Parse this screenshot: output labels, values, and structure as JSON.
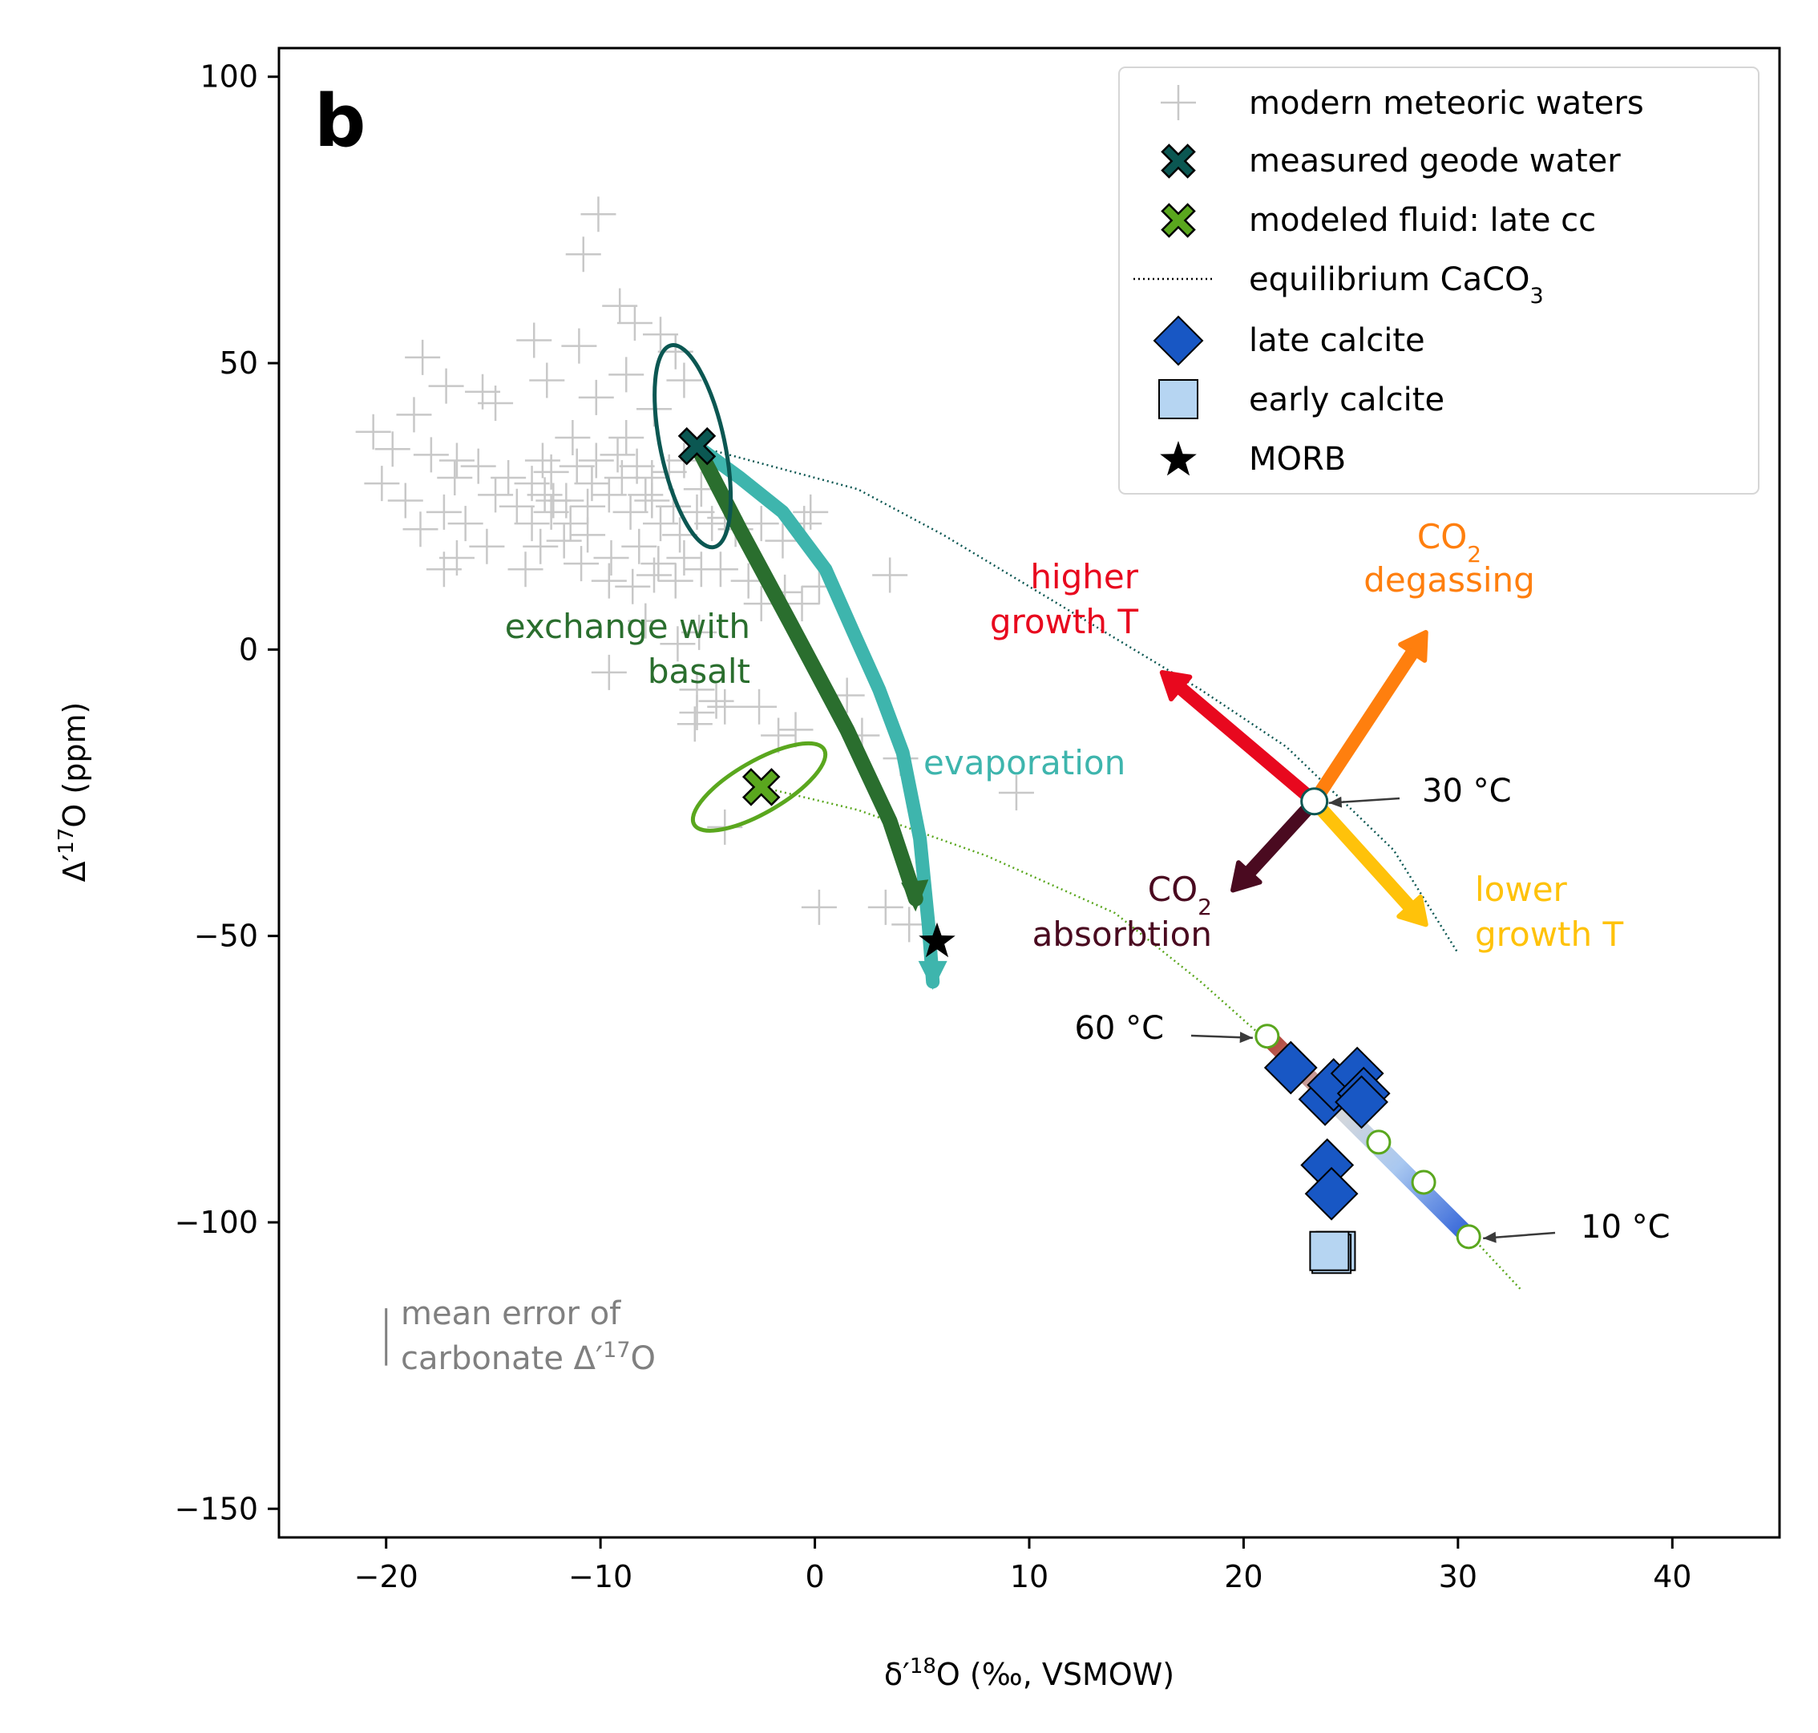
{
  "chart_data": {
    "type": "scatter",
    "panel_label": "b",
    "xlabel_main": "δ′",
    "xlabel_sup": "18",
    "xlabel_rest": "O (‰, VSMOW)",
    "ylabel_main": "Δ′",
    "ylabel_sup": "17",
    "ylabel_rest": "O (ppm)",
    "xlim": [
      -25,
      45
    ],
    "ylim": [
      -155,
      105
    ],
    "xticks": [
      -20,
      -10,
      0,
      10,
      20,
      30,
      40
    ],
    "yticks": [
      -150,
      -100,
      -50,
      0,
      50,
      100
    ],
    "xtick_labels": [
      "−20",
      "−10",
      "0",
      "10",
      "20",
      "30",
      "40"
    ],
    "ytick_labels": [
      "−150",
      "−100",
      "−50",
      "0",
      "50",
      "100"
    ],
    "colors": {
      "meteoric": "#c8c8c8",
      "geode": "#0b5752",
      "modeled": "#5aa71e",
      "basalt": "#2a6e2e",
      "evaporation": "#3eb5ad",
      "higherT": "#e8081e",
      "degassing": "#ff7f0e",
      "absorption": "#4a0a20",
      "lowerT": "#ffc20a",
      "late_calcite": "#1857c4",
      "early_calcite": "#b6d5f2",
      "error": "#808080"
    },
    "legend": {
      "placement": "top-right",
      "entries": [
        {
          "marker": "plus",
          "label": "modern meteoric waters"
        },
        {
          "marker": "x-geode",
          "label": "measured geode water"
        },
        {
          "marker": "x-modeled",
          "label": "modeled fluid: late cc"
        },
        {
          "marker": "dotted-line",
          "label": "equilibrium CaCO",
          "sub": "3"
        },
        {
          "marker": "diamond",
          "label": "late calcite"
        },
        {
          "marker": "square",
          "label": "early calcite"
        },
        {
          "marker": "star",
          "label": "MORB"
        }
      ]
    },
    "meteoric_waters": [
      [
        -10.1,
        76
      ],
      [
        -10.8,
        69
      ],
      [
        -9.1,
        60
      ],
      [
        -8.4,
        57
      ],
      [
        -7.2,
        55
      ],
      [
        -6.5,
        52
      ],
      [
        -13.1,
        54
      ],
      [
        -11,
        53
      ],
      [
        -18.3,
        51
      ],
      [
        -17.2,
        46
      ],
      [
        -15.5,
        45
      ],
      [
        -14.9,
        43
      ],
      [
        -12.5,
        47
      ],
      [
        -10.2,
        44
      ],
      [
        -8.8,
        48
      ],
      [
        -6.1,
        47
      ],
      [
        -7.5,
        42
      ],
      [
        -18.7,
        41
      ],
      [
        -20.6,
        38
      ],
      [
        -19.7,
        35
      ],
      [
        -17.9,
        34
      ],
      [
        -16.7,
        33
      ],
      [
        -15.7,
        32
      ],
      [
        -14.3,
        30
      ],
      [
        -13.2,
        29
      ],
      [
        -12.3,
        31
      ],
      [
        -11.1,
        32
      ],
      [
        -10.2,
        33
      ],
      [
        -9.2,
        34
      ],
      [
        -8.3,
        32
      ],
      [
        -7.6,
        30
      ],
      [
        -6.8,
        31
      ],
      [
        -6.1,
        33
      ],
      [
        -20.2,
        29
      ],
      [
        -19.1,
        26
      ],
      [
        -17.3,
        24
      ],
      [
        -16.3,
        22
      ],
      [
        -13.9,
        25
      ],
      [
        -12.6,
        27
      ],
      [
        -11.6,
        26
      ],
      [
        -10.6,
        25
      ],
      [
        -9.6,
        27
      ],
      [
        -8.6,
        24
      ],
      [
        -7.6,
        26
      ],
      [
        -6.6,
        25
      ],
      [
        -5.5,
        24
      ],
      [
        -4.8,
        22
      ],
      [
        -4.2,
        23
      ],
      [
        -3.7,
        21
      ],
      [
        -2.5,
        22
      ],
      [
        -1.5,
        19
      ],
      [
        -0.5,
        22
      ],
      [
        -0.2,
        24
      ],
      [
        -18.4,
        21
      ],
      [
        -16.7,
        16
      ],
      [
        -15.3,
        18
      ],
      [
        -12.8,
        18
      ],
      [
        -11.7,
        19
      ],
      [
        -10.6,
        20
      ],
      [
        -9.5,
        16
      ],
      [
        -8.2,
        18
      ],
      [
        -7.3,
        15
      ],
      [
        -6.1,
        16
      ],
      [
        -5.3,
        14
      ],
      [
        -17.3,
        14
      ],
      [
        -13.5,
        14
      ],
      [
        -10.9,
        15
      ],
      [
        -9.6,
        12
      ],
      [
        -8.5,
        11
      ],
      [
        -7.5,
        13
      ],
      [
        -6.5,
        12
      ],
      [
        -4.4,
        14
      ],
      [
        -3.1,
        12
      ],
      [
        -2.5,
        8
      ],
      [
        -1.4,
        10
      ],
      [
        -0.6,
        8
      ],
      [
        0.2,
        11
      ],
      [
        3.5,
        13
      ],
      [
        -7.9,
        5
      ],
      [
        -6.4,
        1
      ],
      [
        -5.4,
        3
      ],
      [
        -9.6,
        -4
      ],
      [
        -5.5,
        -7
      ],
      [
        -4.6,
        -9
      ],
      [
        -5.5,
        -11
      ],
      [
        -4.2,
        -10
      ],
      [
        -5.6,
        -13
      ],
      [
        -2.6,
        -10
      ],
      [
        -1.7,
        -15
      ],
      [
        -0.9,
        -14
      ],
      [
        1.5,
        -8
      ],
      [
        2.2,
        -15
      ],
      [
        4,
        -19
      ],
      [
        9.4,
        -25
      ],
      [
        -4.2,
        -31
      ],
      [
        0.2,
        -45
      ],
      [
        3.3,
        -45
      ],
      [
        4.4,
        -48
      ],
      [
        -12.2,
        26
      ],
      [
        -13.2,
        22
      ],
      [
        -14.9,
        27
      ],
      [
        -16.8,
        30
      ],
      [
        -12.3,
        24
      ],
      [
        -11.4,
        22
      ],
      [
        -10.4,
        29
      ],
      [
        -9,
        30
      ],
      [
        -7.9,
        27
      ],
      [
        -7.2,
        22
      ],
      [
        -6.3,
        20
      ],
      [
        -5.3,
        28
      ],
      [
        -12.7,
        33
      ],
      [
        -8.8,
        37
      ],
      [
        -11.3,
        37
      ]
    ],
    "geode_water": {
      "x": -5.5,
      "y": 35.5,
      "label": "measured geode water"
    },
    "geode_ellipse": {
      "cx": -5.7,
      "cy": 35.5,
      "rx_x": 1.5,
      "ry_y": 18,
      "rot": -12
    },
    "modeled_fluid": {
      "x": -2.5,
      "y": -24,
      "label": "modeled fluid: late cc"
    },
    "modeled_ellipse": {
      "cx": -2.6,
      "cy": -24,
      "rx_x": 3.5,
      "ry_y": 4.5,
      "rot": -30
    },
    "morb": {
      "x": 5.7,
      "y": -51
    },
    "basalt_path": [
      [
        -5.5,
        35.5
      ],
      [
        -3.5,
        21
      ],
      [
        -1.2,
        5
      ],
      [
        1.5,
        -14
      ],
      [
        3.5,
        -30
      ],
      [
        4.7,
        -43.5
      ]
    ],
    "evaporation_path": [
      [
        -5.5,
        35.5
      ],
      [
        -3.5,
        30
      ],
      [
        -1.5,
        24
      ],
      [
        0.5,
        14
      ],
      [
        1.8,
        3
      ],
      [
        3,
        -7
      ],
      [
        4.1,
        -18
      ],
      [
        4.9,
        -33
      ],
      [
        5.3,
        -48
      ],
      [
        5.5,
        -58
      ]
    ],
    "equilibrium_upper": [
      [
        -5.5,
        35.5
      ],
      [
        2,
        28
      ],
      [
        6,
        20
      ],
      [
        10,
        11
      ],
      [
        14,
        2
      ],
      [
        18,
        -7
      ],
      [
        22,
        -17
      ],
      [
        24.5,
        -26
      ],
      [
        27,
        -35
      ],
      [
        30,
        -53
      ]
    ],
    "equilibrium_lower": [
      [
        -2.5,
        -24
      ],
      [
        2,
        -28
      ],
      [
        8,
        -36
      ],
      [
        14,
        -46
      ],
      [
        18,
        -58
      ],
      [
        21,
        -68
      ],
      [
        24,
        -80
      ],
      [
        27,
        -91
      ],
      [
        31,
        -104
      ],
      [
        33,
        -112
      ]
    ],
    "center_point": {
      "x": 23.3,
      "y": -26.5,
      "label": "30 °C"
    },
    "temp_points": [
      {
        "x": 21.1,
        "y": -67.5,
        "label": "60 °C"
      },
      {
        "x": 26.3,
        "y": -86
      },
      {
        "x": 28.4,
        "y": -93
      },
      {
        "x": 30.5,
        "y": -102.5,
        "label": "10 °C"
      }
    ],
    "arrows": [
      {
        "label": "higher growth T",
        "line1": "higher",
        "line2": "growth T",
        "to": [
          16.2,
          -4
        ]
      },
      {
        "label": "CO2 degassing",
        "line1": "CO",
        "sub": "2",
        "line2": "degassing",
        "to": [
          28.5,
          3
        ]
      },
      {
        "label": "CO2 absorbtion",
        "line1": "CO",
        "sub": "2",
        "line2": "absorbtion",
        "to": [
          19.5,
          -42
        ]
      },
      {
        "label": "lower growth T",
        "line1": "lower",
        "line2": "growth T",
        "to": [
          28.5,
          -48
        ]
      }
    ],
    "late_calcite": [
      [
        22.2,
        -73
      ],
      [
        23.8,
        -78.5
      ],
      [
        24.2,
        -76
      ],
      [
        25.3,
        -74
      ],
      [
        25.6,
        -77.5
      ],
      [
        25.5,
        -79
      ],
      [
        23.9,
        -90
      ],
      [
        24.1,
        -95
      ]
    ],
    "early_calcite": [
      [
        24.3,
        -105
      ],
      [
        24.1,
        -105.5
      ],
      [
        24,
        -105
      ]
    ],
    "annotations": {
      "exchange_line1": "exchange with",
      "exchange_line2": "basalt",
      "evaporation": "evaporation",
      "error_line1": "mean error of",
      "error_line2_main": "carbonate Δ′",
      "error_line2_sup": "17",
      "error_line2_rest": "O"
    },
    "error_bar": {
      "x": -20,
      "y_center": -120,
      "half": 5
    }
  }
}
